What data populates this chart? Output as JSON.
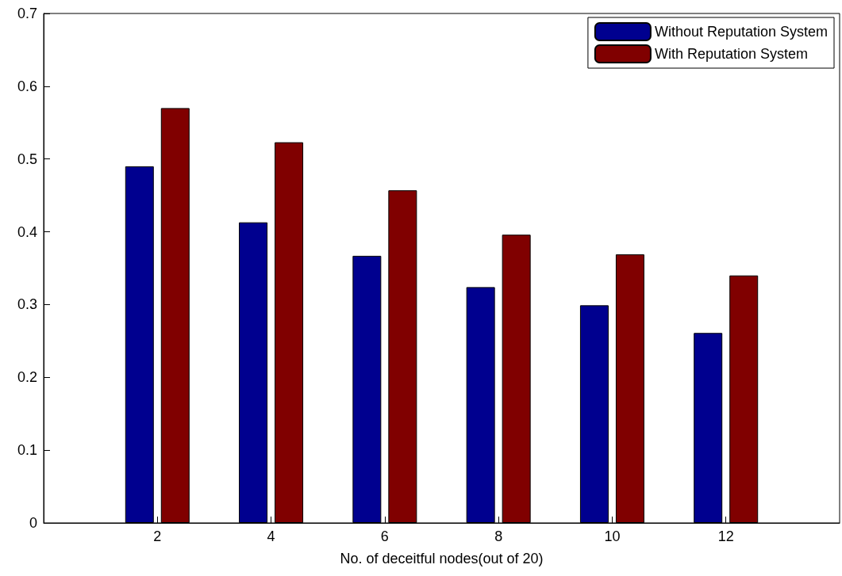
{
  "chart_data": {
    "type": "bar",
    "xlabel": "No. of deceitful nodes(out of 20)",
    "x": [
      2,
      4,
      6,
      8,
      10,
      12
    ],
    "xlim": [
      0,
      14
    ],
    "xticks": [
      2,
      4,
      6,
      8,
      10,
      12
    ],
    "ylim": [
      0,
      0.7
    ],
    "yticks": [
      0,
      0.1,
      0.2,
      0.3,
      0.4,
      0.5,
      0.6,
      0.7
    ],
    "series": [
      {
        "name": "Without Reputation System",
        "color": "#00008f",
        "values": [
          0.49,
          0.413,
          0.367,
          0.324,
          0.299,
          0.261
        ]
      },
      {
        "name": "With Reputation System",
        "color": "#800000",
        "values": [
          0.57,
          0.523,
          0.457,
          0.396,
          0.369,
          0.34
        ]
      }
    ],
    "legend": "top right",
    "grid": false
  }
}
